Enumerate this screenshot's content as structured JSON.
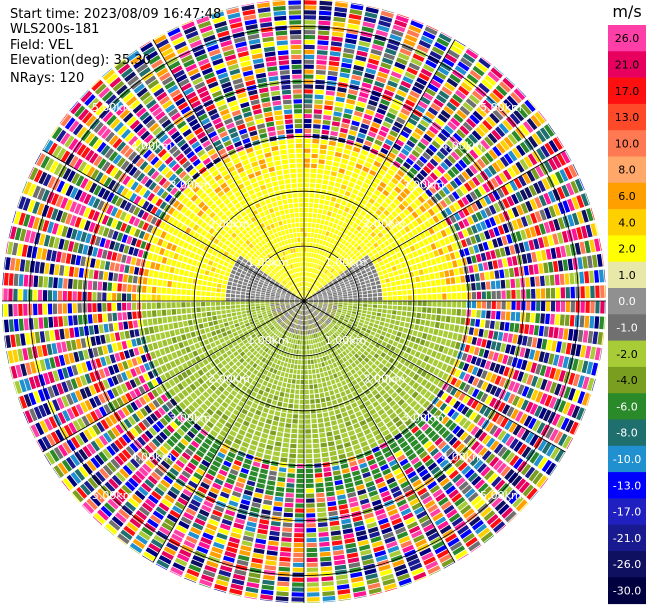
{
  "header": {
    "start_time": "Start time: 2023/08/09 16:47:48",
    "instrument": "WLS200s-181",
    "field": "Field: VEL",
    "elevation": "Elevation(deg): 35.30",
    "nrays": "NRays: 120"
  },
  "ppi": {
    "ring_labels": [
      "1.00km",
      "2.00km",
      "3.00km",
      "4.00km",
      "5.00km"
    ],
    "ring_ranges_km": [
      1,
      2,
      3,
      4,
      5
    ],
    "max_range_km": 5.5,
    "n_rays": 120
  },
  "colorbar": {
    "unit": "m/s",
    "ticks": [
      "26.0",
      "21.0",
      "17.0",
      "13.0",
      "10.0",
      "8.0",
      "6.0",
      "4.0",
      "2.0",
      "1.0",
      "0.0",
      "-1.0",
      "-2.0",
      "-4.0",
      "-6.0",
      "-8.0",
      "-10.0",
      "-13.0",
      "-17.0",
      "-21.0",
      "-26.0",
      "-30.0"
    ],
    "colors": [
      "#ff3fa8",
      "#e8005e",
      "#ff1010",
      "#ff4a2a",
      "#ff7a52",
      "#ffa86a",
      "#ffa000",
      "#ffd000",
      "#ffff00",
      "#e8e8a8",
      "#909090",
      "#707070",
      "#a8cc38",
      "#7a9e20",
      "#2a8a2a",
      "#1f6f6f",
      "#2090d0",
      "#0000ff",
      "#2020c0",
      "#1a1a90",
      "#101060",
      "#000040"
    ]
  }
}
